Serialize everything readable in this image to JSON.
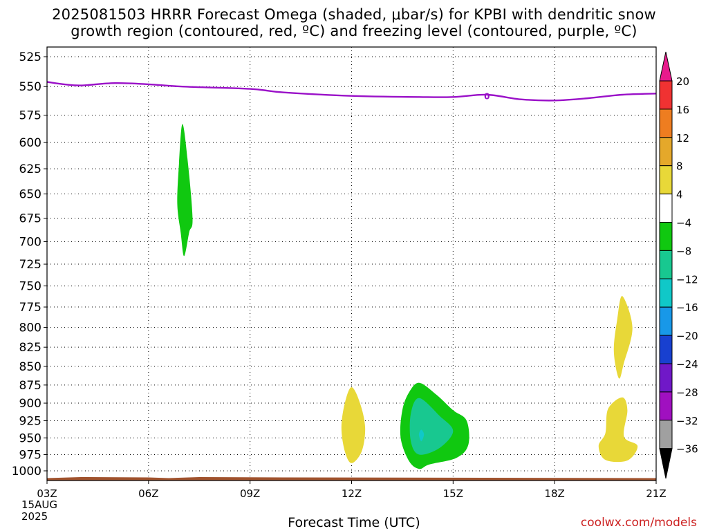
{
  "title_line_1": "2025081503 HRRR Forecast Omega (shaded, μbar/s) for KPBI with dendritic snow",
  "title_line_2": "growth region (contoured, red, ºC) and freezing level (contoured, purple, ºC)",
  "xlabel": "Forecast Time (UTC)",
  "credit": "coolwx.com/models",
  "date_day": "15AUG",
  "date_year": "2025",
  "chart_data": {
    "type": "contour",
    "x_unit": "forecast hour (UTC)",
    "x_range": [
      3,
      21
    ],
    "x_ticks": [
      {
        "x": 3,
        "label": "03Z"
      },
      {
        "x": 6,
        "label": "06Z"
      },
      {
        "x": 9,
        "label": "09Z"
      },
      {
        "x": 12,
        "label": "12Z"
      },
      {
        "x": 15,
        "label": "15Z"
      },
      {
        "x": 18,
        "label": "18Z"
      },
      {
        "x": 21,
        "label": "21Z"
      }
    ],
    "y_unit": "pressure (mb)",
    "y_scale": "log",
    "y_range": [
      1000,
      517
    ],
    "y_ticks": [
      525,
      550,
      575,
      600,
      625,
      650,
      675,
      700,
      725,
      750,
      775,
      800,
      825,
      850,
      875,
      900,
      925,
      950,
      975,
      1000
    ],
    "grid": true,
    "colorbar": {
      "labels": [
        20,
        16,
        12,
        8,
        4,
        -4,
        -8,
        -12,
        -16,
        -20,
        -24,
        -28,
        -32,
        -36
      ],
      "colors": [
        "#e81a8c",
        "#f03232",
        "#ee7d20",
        "#e5a82a",
        "#e8d838",
        "#ffffff",
        "#10c810",
        "#18c890",
        "#10c8c8",
        "#1898e8",
        "#1840d0",
        "#7018c8",
        "#a010c0",
        "#a0a0a0",
        "#000000"
      ]
    },
    "freezing_level": {
      "color": "#9a10c8",
      "label": "0",
      "label_at": [
        16,
        558
      ],
      "points": [
        [
          3,
          546
        ],
        [
          3.5,
          548
        ],
        [
          4,
          549
        ],
        [
          5,
          547
        ],
        [
          6,
          548
        ],
        [
          7,
          550
        ],
        [
          9,
          552
        ],
        [
          10,
          555
        ],
        [
          12,
          558
        ],
        [
          14,
          559
        ],
        [
          15,
          559
        ],
        [
          16,
          557
        ],
        [
          17,
          561
        ],
        [
          18,
          562
        ],
        [
          19,
          560
        ],
        [
          20,
          557
        ],
        [
          21,
          556
        ]
      ]
    },
    "omega_regions": [
      {
        "value": -6,
        "color": "#10c810",
        "points": [
          [
            7,
            583
          ],
          [
            7.15,
            615
          ],
          [
            7.3,
            675
          ],
          [
            7.2,
            690
          ],
          [
            7.05,
            716
          ],
          [
            6.95,
            690
          ],
          [
            6.85,
            660
          ],
          [
            6.9,
            620
          ]
        ]
      },
      {
        "value": 6,
        "color": "#e8d838",
        "points": [
          [
            12,
            878
          ],
          [
            12.25,
            900
          ],
          [
            12.4,
            935
          ],
          [
            12.3,
            970
          ],
          [
            12,
            988
          ],
          [
            11.8,
            970
          ],
          [
            11.7,
            935
          ],
          [
            11.8,
            900
          ]
        ]
      },
      {
        "value": -6,
        "color": "#10c810",
        "points": [
          [
            14,
            872
          ],
          [
            14.5,
            888
          ],
          [
            15,
            910
          ],
          [
            15.4,
            925
          ],
          [
            15.45,
            960
          ],
          [
            15.1,
            980
          ],
          [
            14.3,
            990
          ],
          [
            14,
            997
          ],
          [
            13.7,
            985
          ],
          [
            13.45,
            950
          ],
          [
            13.5,
            910
          ],
          [
            13.7,
            885
          ]
        ]
      },
      {
        "value": -10,
        "color": "#18c890",
        "points": [
          [
            14,
            893
          ],
          [
            14.6,
            918
          ],
          [
            15,
            940
          ],
          [
            14.6,
            965
          ],
          [
            14,
            975
          ],
          [
            13.75,
            955
          ],
          [
            13.75,
            915
          ]
        ]
      },
      {
        "value": -13,
        "color": "#10c8c8",
        "points": [
          [
            14.06,
            938
          ],
          [
            14.14,
            945
          ],
          [
            14.06,
            955
          ],
          [
            13.99,
            945
          ]
        ]
      },
      {
        "value": 6,
        "color": "#e8d838",
        "points": [
          [
            20,
            762
          ],
          [
            20.3,
            800
          ],
          [
            20.05,
            845
          ],
          [
            19.9,
            866
          ],
          [
            19.75,
            830
          ],
          [
            19.85,
            790
          ]
        ]
      },
      {
        "value": 6,
        "color": "#e8d838",
        "points": [
          [
            20,
            892
          ],
          [
            20.15,
            910
          ],
          [
            20.05,
            948
          ],
          [
            20.45,
            962
          ],
          [
            20.15,
            984
          ],
          [
            19.5,
            983
          ],
          [
            19.3,
            962
          ],
          [
            19.5,
            943
          ],
          [
            19.58,
            908
          ]
        ]
      }
    ],
    "surface_line": {
      "color": "#a0522d",
      "pressure": 1015
    }
  }
}
